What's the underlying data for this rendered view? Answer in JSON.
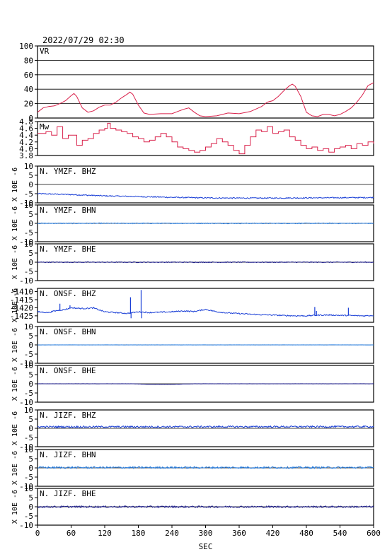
{
  "header": {
    "timestamp": "2022/07/29 02:30"
  },
  "chart_data": {
    "type": "line",
    "xlabel": "SEC",
    "xlim": [
      0,
      600
    ],
    "xticks": [
      "0",
      "60",
      "120",
      "180",
      "240",
      "300",
      "360",
      "420",
      "480",
      "540",
      "600"
    ],
    "colors": {
      "vr": "#d9204a",
      "mw": "#d9204a",
      "dark_blue": "#1b1b8a",
      "blue": "#1a3fd6",
      "light_blue": "#2a7fe0",
      "axis": "#000000"
    },
    "panels": [
      {
        "name": "VR",
        "ylim": [
          0,
          100
        ],
        "yticks": [
          "0",
          "20",
          "40",
          "60",
          "80",
          "100"
        ],
        "ytick_values": [
          0,
          20,
          40,
          60,
          80,
          100
        ],
        "grid_values": [
          20,
          40,
          60,
          80
        ],
        "color": "#d9204a",
        "x": [
          0,
          10,
          20,
          30,
          40,
          50,
          60,
          65,
          70,
          80,
          90,
          100,
          110,
          120,
          130,
          140,
          150,
          160,
          165,
          170,
          180,
          190,
          200,
          220,
          240,
          260,
          270,
          280,
          290,
          300,
          320,
          340,
          360,
          380,
          400,
          410,
          420,
          430,
          440,
          450,
          455,
          460,
          470,
          480,
          490,
          500,
          510,
          520,
          530,
          540,
          550,
          560,
          570,
          580,
          590,
          600
        ],
        "y": [
          8,
          14,
          16,
          17,
          20,
          24,
          31,
          34,
          30,
          14,
          8,
          10,
          15,
          18,
          18,
          22,
          28,
          33,
          36,
          33,
          18,
          7,
          5,
          6,
          6,
          12,
          14,
          8,
          3,
          2,
          3,
          7,
          6,
          9,
          16,
          22,
          24,
          30,
          38,
          45,
          47,
          44,
          30,
          8,
          3,
          2,
          5,
          5,
          3,
          5,
          9,
          14,
          22,
          32,
          45,
          49
        ]
      },
      {
        "name": "Mw",
        "ylim": [
          3.8,
          4.8
        ],
        "yticks": [
          "3.8",
          "4.0",
          "4.2",
          "4.4",
          "4.6",
          "4.8"
        ],
        "ytick_values": [
          3.8,
          4.0,
          4.2,
          4.4,
          4.6,
          4.8
        ],
        "grid_values": [],
        "color": "#d9204a",
        "x": [
          0,
          15,
          25,
          35,
          45,
          55,
          60,
          70,
          80,
          90,
          100,
          110,
          120,
          125,
          130,
          140,
          150,
          160,
          170,
          180,
          190,
          200,
          210,
          220,
          230,
          240,
          250,
          260,
          270,
          280,
          290,
          300,
          310,
          320,
          330,
          340,
          350,
          360,
          370,
          380,
          390,
          400,
          410,
          420,
          430,
          440,
          450,
          460,
          470,
          480,
          490,
          500,
          510,
          520,
          530,
          540,
          550,
          560,
          570,
          580,
          590,
          600
        ],
        "y": [
          4.45,
          4.5,
          4.4,
          4.65,
          4.3,
          4.4,
          4.4,
          4.1,
          4.25,
          4.3,
          4.45,
          4.55,
          4.6,
          4.75,
          4.6,
          4.55,
          4.5,
          4.45,
          4.35,
          4.3,
          4.2,
          4.25,
          4.35,
          4.45,
          4.35,
          4.2,
          4.05,
          4.0,
          3.95,
          3.9,
          3.95,
          4.05,
          4.15,
          4.3,
          4.2,
          4.1,
          3.95,
          3.85,
          4.1,
          4.35,
          4.55,
          4.5,
          4.65,
          4.45,
          4.5,
          4.55,
          4.35,
          4.25,
          4.1,
          4.0,
          4.05,
          3.95,
          4.0,
          3.9,
          4.0,
          4.05,
          4.1,
          4.0,
          4.15,
          4.1,
          4.2,
          4.15
        ]
      },
      {
        "name": "N. YMZF. BHZ",
        "ylabel": "X 10E -6",
        "ylim": [
          -10,
          10
        ],
        "yticks": [
          "-10",
          "-5",
          "0",
          "5",
          "10"
        ],
        "ytick_values": [
          -10,
          -5,
          0,
          5,
          10
        ],
        "color": "#1a3fd6",
        "x": [
          0,
          60,
          120,
          180,
          240,
          300,
          360,
          420,
          480,
          540,
          600
        ],
        "y": [
          -5.0,
          -5.5,
          -6.2,
          -6.6,
          -7.0,
          -7.3,
          -7.4,
          -7.4,
          -7.3,
          -7.2,
          -7.1
        ],
        "noise": 0.3
      },
      {
        "name": "N. YMZF. BHN",
        "ylabel": "X 10E -6",
        "ylim": [
          -10,
          10
        ],
        "yticks": [
          "-10",
          "-5",
          "0",
          "5",
          "10"
        ],
        "ytick_values": [
          -10,
          -5,
          0,
          5,
          10
        ],
        "color": "#2a7fe0",
        "x": [
          0,
          600
        ],
        "y": [
          0,
          0
        ],
        "noise": 0.25
      },
      {
        "name": "N. YMZF. BHE",
        "ylabel": "X 10E -6",
        "ylim": [
          -10,
          10
        ],
        "yticks": [
          "-10",
          "-5",
          "0",
          "5",
          "10"
        ],
        "ytick_values": [
          -10,
          -5,
          0,
          5,
          10
        ],
        "color": "#1b1b8a",
        "x": [
          0,
          600
        ],
        "y": [
          0,
          0
        ],
        "noise": 0.25
      },
      {
        "name": "N. ONSF. BHZ",
        "ylabel": "X 10E -6",
        "ylim": [
          -1429,
          -1408
        ],
        "yticks": [
          "-1425",
          "-1420",
          "-1415",
          "-1410"
        ],
        "ytick_values": [
          -1425,
          -1420,
          -1415,
          -1410
        ],
        "color": "#1a3fd6",
        "x": [
          0,
          20,
          30,
          40,
          50,
          60,
          80,
          100,
          120,
          140,
          160,
          180,
          200,
          240,
          260,
          280,
          300,
          320,
          340,
          360,
          380,
          400,
          420,
          440,
          460,
          480,
          500,
          520,
          540,
          560,
          580,
          600
        ],
        "y": [
          -1422.5,
          -1423.0,
          -1422.0,
          -1421.5,
          -1421.0,
          -1420.0,
          -1420.5,
          -1420.2,
          -1422.5,
          -1423.0,
          -1423.5,
          -1422.5,
          -1423.0,
          -1422.5,
          -1422.0,
          -1422.3,
          -1421.0,
          -1422.5,
          -1423.2,
          -1423.6,
          -1424.0,
          -1424.3,
          -1424.5,
          -1424.8,
          -1425.0,
          -1425.0,
          -1424.6,
          -1424.5,
          -1424.7,
          -1424.8,
          -1425.0,
          -1424.8
        ],
        "noise": 0.35,
        "spikes": [
          [
            40,
            -1417.5
          ],
          [
            58,
            -1418.5
          ],
          [
            100,
            -1419.5
          ],
          [
            166,
            -1413.5
          ],
          [
            167,
            -1426.5
          ],
          [
            185,
            -1409.0
          ],
          [
            186,
            -1426.5
          ],
          [
            495,
            -1419.5
          ],
          [
            498,
            -1422.0
          ],
          [
            555,
            -1420.0
          ]
        ]
      },
      {
        "name": "N. ONSF. BHN",
        "ylabel": "X 10E -6",
        "ylim": [
          -10,
          10
        ],
        "yticks": [
          "-10",
          "-5",
          "0",
          "5",
          "10"
        ],
        "ytick_values": [
          -10,
          -5,
          0,
          5,
          10
        ],
        "color": "#2a7fe0",
        "x": [
          0,
          600
        ],
        "y": [
          0,
          0
        ],
        "noise": 0.05
      },
      {
        "name": "N. ONSF. BHE",
        "ylabel": "X 10E -6",
        "ylim": [
          -10,
          10
        ],
        "yticks": [
          "-10",
          "-5",
          "0",
          "5",
          "10"
        ],
        "ytick_values": [
          -10,
          -5,
          0,
          5,
          10
        ],
        "color": "#1b1b8a",
        "x": [
          0,
          170,
          200,
          240,
          280,
          600
        ],
        "y": [
          0,
          0,
          -0.3,
          -0.3,
          0,
          0
        ],
        "noise": 0.04
      },
      {
        "name": "N. JIZF. BHZ",
        "ylabel": "X 10E -6",
        "ylim": [
          -10,
          10
        ],
        "yticks": [
          "-10",
          "-5",
          "0",
          "5",
          "10"
        ],
        "ytick_values": [
          -10,
          -5,
          0,
          5,
          10
        ],
        "color": "#1a3fd6",
        "x": [
          0,
          600
        ],
        "y": [
          0.8,
          0.9
        ],
        "noise": 0.45
      },
      {
        "name": "N. JIZF. BHN",
        "ylabel": "X 10E -6",
        "ylim": [
          -10,
          10
        ],
        "yticks": [
          "-10",
          "-5",
          "0",
          "5",
          "10"
        ],
        "ytick_values": [
          -10,
          -5,
          0,
          5,
          10
        ],
        "color": "#2a7fe0",
        "x": [
          0,
          600
        ],
        "y": [
          0.2,
          0.2
        ],
        "noise": 0.5
      },
      {
        "name": "N. JIZF. BHE",
        "ylabel": "X 10E -6",
        "ylim": [
          -10,
          10
        ],
        "yticks": [
          "-10",
          "-5",
          "0",
          "5",
          "10"
        ],
        "ytick_values": [
          -10,
          -5,
          0,
          5,
          10
        ],
        "color": "#1b1b8a",
        "x": [
          0,
          600
        ],
        "y": [
          0,
          0
        ],
        "noise": 0.45
      }
    ]
  }
}
